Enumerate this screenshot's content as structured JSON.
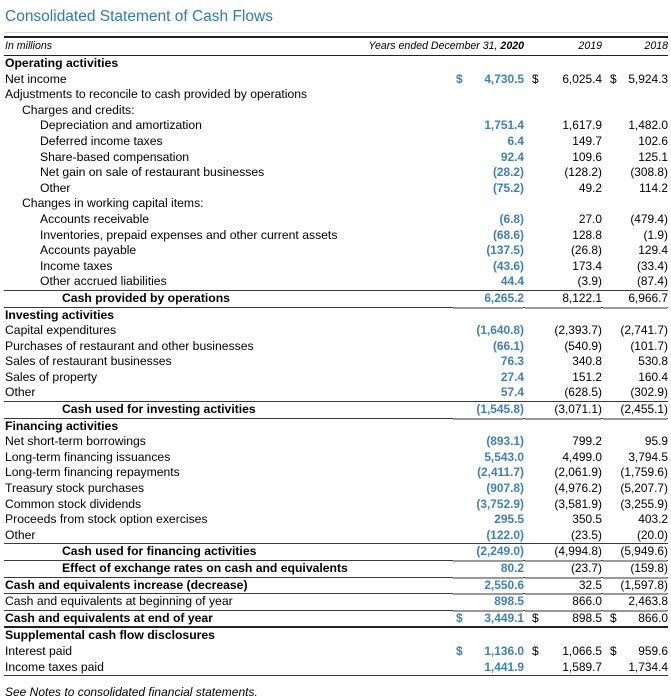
{
  "title": "Consolidated Statement of Cash Flows",
  "header": {
    "in_millions": "In millions",
    "years_ended_label": "Years ended December 31, ",
    "year_2020": "2020",
    "year_2019": "2019",
    "year_2018": "2018"
  },
  "colors": {
    "title_blue": "#2f7ab5",
    "value_blue_2020": "#3f80b8"
  },
  "footnote": "See Notes to consolidated financial statements.",
  "table": {
    "columns": [
      "2020",
      "2019",
      "2018"
    ],
    "rows": [
      {
        "label": "Operating activities",
        "indent": 0,
        "bold": true,
        "dollar": false,
        "values": null
      },
      {
        "label": "Net income",
        "indent": 0,
        "bold": false,
        "dollar": true,
        "values": [
          "4,730.5",
          "6,025.4",
          "5,924.3"
        ]
      },
      {
        "label": "Adjustments to reconcile to cash provided by operations",
        "indent": 0,
        "bold": false,
        "dollar": false,
        "values": null
      },
      {
        "label": "Charges and credits:",
        "indent": 1,
        "bold": false,
        "dollar": false,
        "values": null
      },
      {
        "label": "Depreciation and amortization",
        "indent": 2,
        "bold": false,
        "dollar": false,
        "values": [
          "1,751.4",
          "1,617.9",
          "1,482.0"
        ]
      },
      {
        "label": "Deferred income taxes",
        "indent": 2,
        "bold": false,
        "dollar": false,
        "values": [
          "6.4",
          "149.7",
          "102.6"
        ]
      },
      {
        "label": "Share-based compensation",
        "indent": 2,
        "bold": false,
        "dollar": false,
        "values": [
          "92.4",
          "109.6",
          "125.1"
        ]
      },
      {
        "label": "Net gain on sale of restaurant businesses",
        "indent": 2,
        "bold": false,
        "dollar": false,
        "values": [
          "(28.2)",
          "(128.2)",
          "(308.8)"
        ]
      },
      {
        "label": "Other",
        "indent": 2,
        "bold": false,
        "dollar": false,
        "values": [
          "(75.2)",
          "49.2",
          "114.2"
        ]
      },
      {
        "label": "Changes in working capital items:",
        "indent": 1,
        "bold": false,
        "dollar": false,
        "values": null
      },
      {
        "label": "Accounts receivable",
        "indent": 2,
        "bold": false,
        "dollar": false,
        "values": [
          "(6.8)",
          "27.0",
          "(479.4)"
        ]
      },
      {
        "label": "Inventories, prepaid expenses and other current assets",
        "indent": 2,
        "bold": false,
        "dollar": false,
        "values": [
          "(68.6)",
          "128.8",
          "(1.9)"
        ]
      },
      {
        "label": "Accounts payable",
        "indent": 2,
        "bold": false,
        "dollar": false,
        "values": [
          "(137.5)",
          "(26.8)",
          "129.4"
        ]
      },
      {
        "label": "Income taxes",
        "indent": 2,
        "bold": false,
        "dollar": false,
        "values": [
          "(43.6)",
          "173.4",
          "(33.4)"
        ]
      },
      {
        "label": "Other accrued liabilities",
        "indent": 2,
        "bold": false,
        "dollar": false,
        "values": [
          "44.4",
          "(3.9)",
          "(87.4)"
        ]
      },
      {
        "label": "Cash provided by operations",
        "indent": 3,
        "bold": true,
        "dollar": false,
        "values": [
          "6,265.2",
          "8,122.1",
          "6,966.7"
        ],
        "rule_top": true,
        "rule_bottom": true,
        "ticks": true
      },
      {
        "label": "Investing activities",
        "indent": 0,
        "bold": true,
        "dollar": false,
        "values": null
      },
      {
        "label": "Capital expenditures",
        "indent": 0,
        "bold": false,
        "dollar": false,
        "values": [
          "(1,640.8)",
          "(2,393.7)",
          "(2,741.7)"
        ]
      },
      {
        "label": "Purchases of restaurant and other businesses",
        "indent": 0,
        "bold": false,
        "dollar": false,
        "values": [
          "(66.1)",
          "(540.9)",
          "(101.7)"
        ]
      },
      {
        "label": "Sales of restaurant businesses",
        "indent": 0,
        "bold": false,
        "dollar": false,
        "values": [
          "76.3",
          "340.8",
          "530.8"
        ]
      },
      {
        "label": "Sales of property",
        "indent": 0,
        "bold": false,
        "dollar": false,
        "values": [
          "27.4",
          "151.2",
          "160.4"
        ]
      },
      {
        "label": "Other",
        "indent": 0,
        "bold": false,
        "dollar": false,
        "values": [
          "57.4",
          "(628.5)",
          "(302.9)"
        ]
      },
      {
        "label": "Cash used for investing activities",
        "indent": 3,
        "bold": true,
        "dollar": false,
        "values": [
          "(1,545.8)",
          "(3,071.1)",
          "(2,455.1)"
        ],
        "rule_top": true,
        "rule_bottom": true,
        "ticks": true
      },
      {
        "label": "Financing activities",
        "indent": 0,
        "bold": true,
        "dollar": false,
        "values": null
      },
      {
        "label": "Net short-term borrowings",
        "indent": 0,
        "bold": false,
        "dollar": false,
        "values": [
          "(893.1)",
          "799.2",
          "95.9"
        ]
      },
      {
        "label": "Long-term financing issuances",
        "indent": 0,
        "bold": false,
        "dollar": false,
        "values": [
          "5,543.0",
          "4,499.0",
          "3,794.5"
        ]
      },
      {
        "label": "Long-term financing repayments",
        "indent": 0,
        "bold": false,
        "dollar": false,
        "values": [
          "(2,411.7)",
          "(2,061.9)",
          "(1,759.6)"
        ]
      },
      {
        "label": "Treasury stock purchases",
        "indent": 0,
        "bold": false,
        "dollar": false,
        "values": [
          "(907.8)",
          "(4,976.2)",
          "(5,207.7)"
        ]
      },
      {
        "label": "Common stock dividends",
        "indent": 0,
        "bold": false,
        "dollar": false,
        "values": [
          "(3,752.9)",
          "(3,581.9)",
          "(3,255.9)"
        ]
      },
      {
        "label": "Proceeds from stock option exercises",
        "indent": 0,
        "bold": false,
        "dollar": false,
        "values": [
          "295.5",
          "350.5",
          "403.2"
        ]
      },
      {
        "label": "Other",
        "indent": 0,
        "bold": false,
        "dollar": false,
        "values": [
          "(122.0)",
          "(23.5)",
          "(20.0)"
        ]
      },
      {
        "label": "Cash used for financing activities",
        "indent": 3,
        "bold": true,
        "dollar": false,
        "values": [
          "(2,249.0)",
          "(4,994.8)",
          "(5,949.6)"
        ],
        "rule_top": true,
        "rule_bottom": true,
        "ticks": true
      },
      {
        "label": "Effect of exchange rates on cash and equivalents",
        "indent": 3,
        "bold": true,
        "dollar": false,
        "values": [
          "80.2",
          "(23.7)",
          "(159.8)"
        ],
        "rule_bottom": true,
        "ticks": true
      },
      {
        "label": "Cash and equivalents increase (decrease)",
        "indent": 0,
        "bold": true,
        "dollar": false,
        "values": [
          "2,550.6",
          "32.5",
          "(1,597.8)"
        ],
        "rule_bottom": true,
        "ticks": true
      },
      {
        "label": "Cash and equivalents at beginning of year",
        "indent": 0,
        "bold": false,
        "dollar": false,
        "values": [
          "898.5",
          "866.0",
          "2,463.8"
        ],
        "rule_bottom": true,
        "ticks": true
      },
      {
        "label": "Cash and equivalents at end of year",
        "indent": 0,
        "bold": true,
        "dollar": true,
        "values": [
          "3,449.1",
          "898.5",
          "866.0"
        ],
        "rule_thick": true
      },
      {
        "label": "Supplemental cash flow disclosures",
        "indent": 0,
        "bold": true,
        "dollar": false,
        "values": null
      },
      {
        "label": "Interest paid",
        "indent": 0,
        "bold": false,
        "dollar": true,
        "values": [
          "1,136.0",
          "1,066.5",
          "959.6"
        ]
      },
      {
        "label": "Income taxes paid",
        "indent": 0,
        "bold": false,
        "dollar": false,
        "values": [
          "1,441.9",
          "1,589.7",
          "1,734.4"
        ],
        "rule_bottom": true
      }
    ]
  }
}
